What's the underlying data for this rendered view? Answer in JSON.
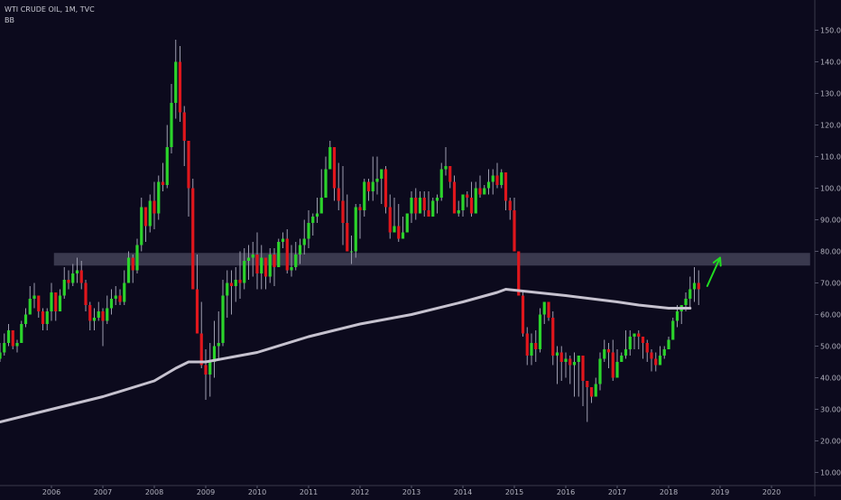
{
  "header": {
    "title": "WTI CRUDE OIL, 1M, TVC",
    "indicator": "BB"
  },
  "colors": {
    "background": "#0c0a1d",
    "up": "#2bd42b",
    "down": "#e0161c",
    "wick": "#9c9cae",
    "basis_line": "#c6c2cf",
    "zone": "#4a4a5f",
    "arrow": "#21dd21",
    "axis_text": "#b3b3bf"
  },
  "chart_data": {
    "type": "candlestick",
    "title": "WTI CRUDE OIL, 1M, TVC",
    "xlabel": "",
    "ylabel": "",
    "x_ticks": [
      "2006",
      "2007",
      "2008",
      "2009",
      "2010",
      "2011",
      "2012",
      "2013",
      "2014",
      "2015",
      "2016",
      "2017",
      "2018",
      "2019",
      "2020"
    ],
    "y_ticks": [
      "10.00",
      "20.00",
      "30.00",
      "40.00",
      "50.00",
      "60.00",
      "70.00",
      "80.00",
      "90.00",
      "100.00",
      "110.00",
      "120.00",
      "130.00",
      "140.00",
      "150.00"
    ],
    "ylim": [
      5,
      157
    ],
    "xlim": [
      "2005-01",
      "2020-12"
    ],
    "grid": false,
    "y_axis_side": "right",
    "series": [
      {
        "type": "candlestick",
        "interval": "1M",
        "start": "2005-01",
        "close": [
          48,
          51,
          55,
          50,
          51,
          57,
          60,
          65,
          66,
          61,
          57,
          61,
          67,
          61,
          66,
          71,
          70,
          73,
          74,
          70,
          63,
          58,
          59,
          61,
          58,
          62,
          65,
          66,
          64,
          70,
          78,
          74,
          82,
          94,
          88,
          96,
          92,
          102,
          101,
          113,
          127,
          140,
          124,
          115,
          100,
          68,
          54,
          44,
          41,
          45,
          50,
          51,
          66,
          70,
          69,
          71,
          70,
          77,
          78,
          79,
          73,
          78,
          72,
          79,
          75,
          83,
          84,
          74,
          75,
          79,
          82,
          84,
          89,
          91,
          92,
          97,
          106,
          113,
          100,
          96,
          89,
          80,
          80,
          94,
          93,
          102,
          99,
          102,
          103,
          106,
          94,
          86,
          88,
          84,
          86,
          92,
          97,
          92,
          97,
          93,
          91,
          96,
          97,
          106,
          107,
          102,
          92,
          93,
          98,
          97,
          92,
          100,
          98,
          100,
          102,
          104,
          101,
          105,
          96,
          93,
          80,
          66,
          54,
          47,
          51,
          49,
          60,
          64,
          59,
          47,
          48,
          45,
          46,
          44,
          45,
          47,
          39,
          37,
          34,
          38,
          46,
          49,
          48,
          40,
          45,
          47,
          49,
          53,
          54,
          53,
          51,
          48,
          46,
          44,
          47,
          49,
          52,
          58,
          61,
          63,
          65,
          68,
          70,
          68
        ],
        "high": [
          51,
          54,
          57,
          55,
          52,
          58,
          62,
          69,
          70,
          66,
          62,
          62,
          70,
          65,
          68,
          75,
          74,
          76,
          78,
          77,
          71,
          64,
          62,
          64,
          62,
          66,
          68,
          69,
          68,
          74,
          80,
          79,
          84,
          97,
          93,
          98,
          102,
          104,
          108,
          120,
          133,
          147,
          145,
          126,
          113,
          103,
          79,
          64,
          49,
          51,
          58,
          61,
          71,
          74,
          74,
          75,
          80,
          81,
          82,
          83,
          86,
          82,
          78,
          81,
          81,
          84,
          86,
          87,
          82,
          83,
          84,
          90,
          93,
          92,
          97,
          106,
          110,
          115,
          113,
          108,
          107,
          98,
          85,
          95,
          95,
          103,
          103,
          110,
          110,
          106,
          107,
          98,
          97,
          95,
          91,
          92,
          99,
          100,
          99,
          99,
          99,
          97,
          98,
          108,
          113,
          107,
          104,
          96,
          98,
          99,
          102,
          102,
          104,
          101,
          106,
          106,
          108,
          106,
          105,
          97,
          97,
          80,
          67,
          56,
          54,
          55,
          62,
          62,
          63,
          61,
          50,
          50,
          48,
          47,
          48,
          47,
          47,
          39,
          37,
          40,
          48,
          52,
          51,
          52,
          49,
          48,
          55,
          55,
          54,
          55,
          52,
          52,
          49,
          48,
          50,
          50,
          53,
          59,
          63,
          63,
          67,
          72,
          75,
          74
        ],
        "low": [
          45,
          47,
          50,
          49,
          48,
          51,
          56,
          60,
          62,
          59,
          55,
          55,
          58,
          58,
          62,
          65,
          68,
          69,
          70,
          68,
          61,
          55,
          55,
          58,
          50,
          57,
          60,
          63,
          63,
          63,
          70,
          70,
          73,
          80,
          83,
          86,
          87,
          90,
          99,
          100,
          111,
          122,
          121,
          107,
          91,
          70,
          55,
          43,
          33,
          34,
          40,
          46,
          50,
          59,
          60,
          64,
          65,
          68,
          71,
          72,
          68,
          68,
          68,
          70,
          69,
          76,
          81,
          73,
          72,
          74,
          76,
          79,
          81,
          85,
          89,
          92,
          97,
          106,
          96,
          93,
          82,
          80,
          76,
          78,
          84,
          91,
          96,
          96,
          98,
          95,
          92,
          84,
          86,
          83,
          84,
          86,
          89,
          90,
          92,
          91,
          91,
          92,
          92,
          96,
          104,
          100,
          92,
          91,
          91,
          94,
          91,
          92,
          97,
          99,
          98,
          98,
          100,
          100,
          93,
          90,
          80,
          66,
          53,
          44,
          44,
          45,
          48,
          57,
          58,
          44,
          38,
          39,
          40,
          38,
          34,
          34,
          31,
          26,
          32,
          34,
          36,
          45,
          43,
          39,
          42,
          45,
          46,
          47,
          49,
          49,
          46,
          45,
          42,
          42,
          44,
          46,
          50,
          54,
          56,
          57,
          61,
          62,
          64,
          63
        ]
      },
      {
        "name": "BB",
        "type": "line",
        "x": [
          "2005-01",
          "2006-01",
          "2007-01",
          "2008-01",
          "2008-06",
          "2008-09",
          "2009-01",
          "2010-01",
          "2011-01",
          "2012-01",
          "2013-01",
          "2014-01",
          "2014-09",
          "2014-11",
          "2015-06",
          "2016-01",
          "2017-01",
          "2017-06",
          "2018-01",
          "2018-06"
        ],
        "values": [
          26,
          30,
          34,
          39,
          43,
          45,
          45,
          48,
          53,
          57,
          60,
          64,
          67,
          68,
          67,
          66,
          64,
          63,
          62,
          62
        ]
      }
    ],
    "annotations": [
      {
        "type": "zone",
        "y_range": [
          75.5,
          79.5
        ],
        "x_range": [
          "2006-02",
          "2020-10"
        ]
      },
      {
        "type": "arrow",
        "from": [
          "2018-10",
          69
        ],
        "to": [
          "2019-01",
          78
        ]
      }
    ]
  }
}
